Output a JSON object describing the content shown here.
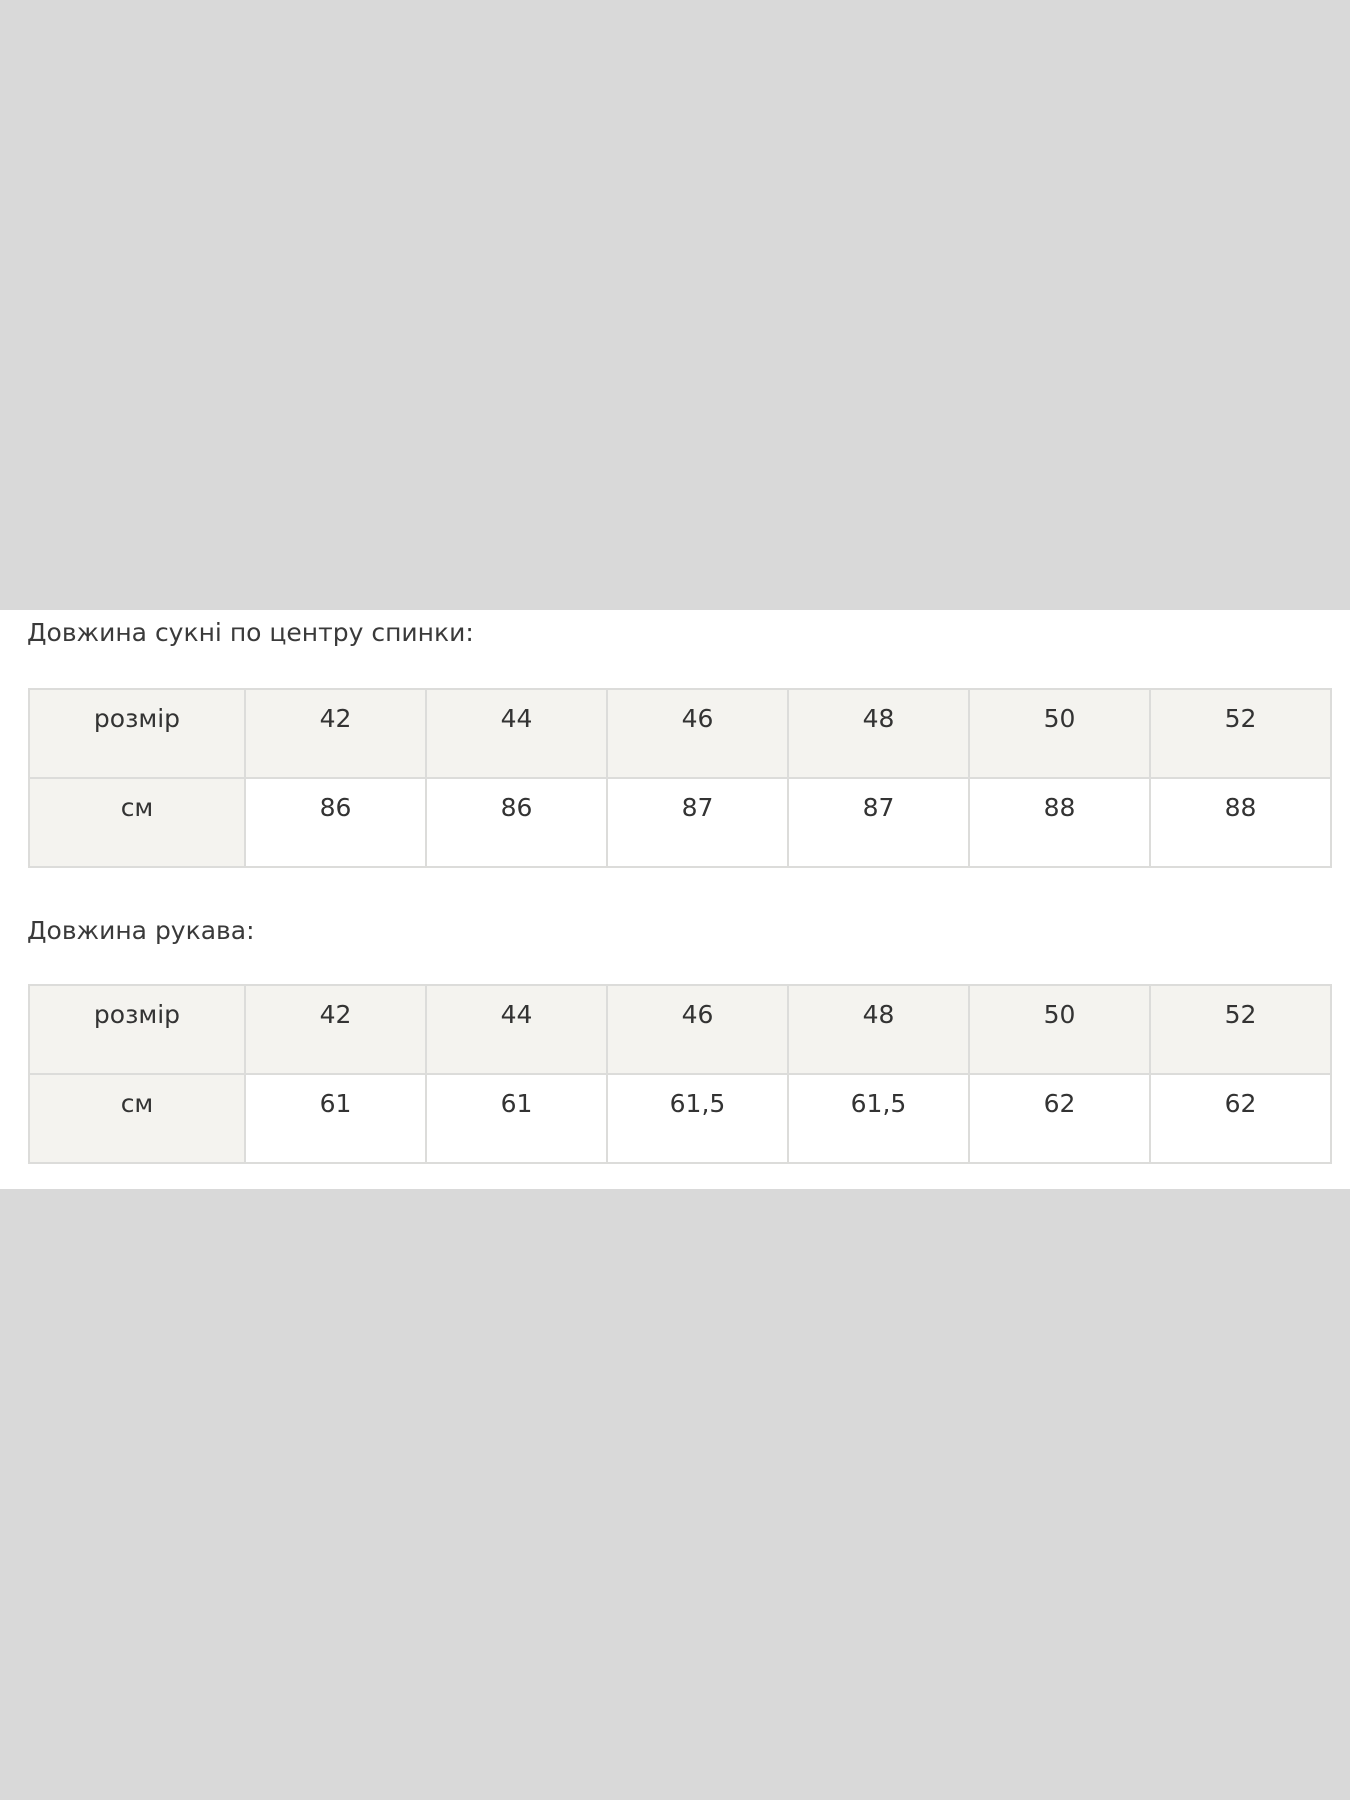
{
  "sections": [
    {
      "title": "Довжина сукні по центру спинки:",
      "header_label": "розмір",
      "sizes": [
        "42",
        "44",
        "46",
        "48",
        "50",
        "52"
      ],
      "row_label": "см",
      "values": [
        "86",
        "86",
        "87",
        "87",
        "88",
        "88"
      ]
    },
    {
      "title": "Довжина рукава:",
      "header_label": "розмір",
      "sizes": [
        "42",
        "44",
        "46",
        "48",
        "50",
        "52"
      ],
      "row_label": "см",
      "values": [
        "61",
        "61",
        "61,5",
        "61,5",
        "62",
        "62"
      ]
    }
  ],
  "colors": {
    "background": "#d9d9d9",
    "header_cell": "#f4f3ef",
    "border": "#dcdcda"
  }
}
